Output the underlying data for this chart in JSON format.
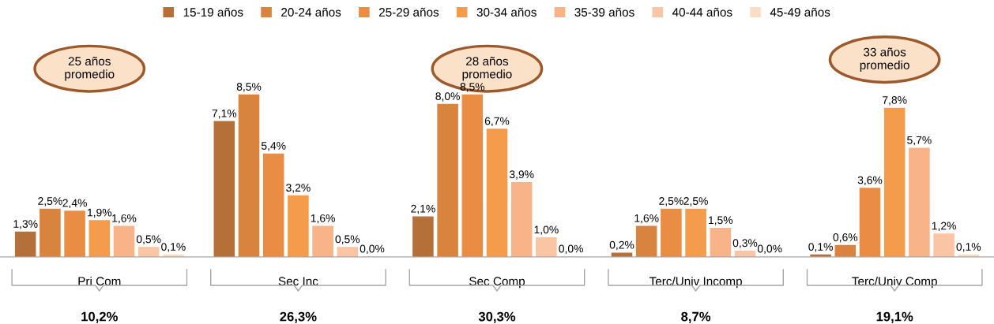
{
  "chart_data": {
    "type": "bar",
    "categories": [
      "Pri Com",
      "Sec Inc",
      "Sec Comp",
      "Terc/Univ Incomp",
      "Terc/Univ Comp"
    ],
    "series": [
      {
        "name": "15-19 años",
        "color": "#b5703a",
        "values": [
          1.3,
          7.1,
          2.1,
          0.2,
          0.1
        ],
        "value_labels": [
          "1,3%",
          "7,1%",
          "2,1%",
          "0,2%",
          "0,1%"
        ]
      },
      {
        "name": "20-24 años",
        "color": "#d9843e",
        "values": [
          2.5,
          8.5,
          8.0,
          1.6,
          0.6
        ],
        "value_labels": [
          "2,5%",
          "8,5%",
          "8,0%",
          "1,6%",
          "0,6%"
        ]
      },
      {
        "name": "25-29 años",
        "color": "#ea8d44",
        "values": [
          2.4,
          5.4,
          8.5,
          2.5,
          3.6
        ],
        "value_labels": [
          "2,4%",
          "5,4%",
          "8,5%",
          "2,5%",
          "3,6%"
        ]
      },
      {
        "name": "30-34 años",
        "color": "#f59b4c",
        "values": [
          1.9,
          3.2,
          6.7,
          2.5,
          7.8
        ],
        "value_labels": [
          "1,9%",
          "3,2%",
          "6,7%",
          "2,5%",
          "7,8%"
        ]
      },
      {
        "name": "35-39 años",
        "color": "#f8b388",
        "values": [
          1.6,
          1.6,
          3.9,
          1.5,
          5.7
        ],
        "value_labels": [
          "1,6%",
          "1,6%",
          "3,9%",
          "1,5%",
          "5,7%"
        ]
      },
      {
        "name": "40-44 años",
        "color": "#fac5a4",
        "values": [
          0.5,
          0.5,
          1.0,
          0.3,
          1.2
        ],
        "value_labels": [
          "0,5%",
          "0,5%",
          "1,0%",
          "0,3%",
          "1,2%"
        ]
      },
      {
        "name": "45-49 años",
        "color": "#fcdcc6",
        "values": [
          0.1,
          0.0,
          0.0,
          0.0,
          0.1
        ],
        "value_labels": [
          "0,1%",
          "0,0%",
          "0,0%",
          "0,0%",
          "0,1%"
        ]
      }
    ],
    "annotations": [
      "25 años\npromedio",
      "28 años\npromedio",
      "33 años\npromedio",
      "10,2%",
      "26,3%",
      "30,3%",
      "8,7%",
      "19,1%"
    ],
    "legend": "top",
    "grid": false
  }
}
